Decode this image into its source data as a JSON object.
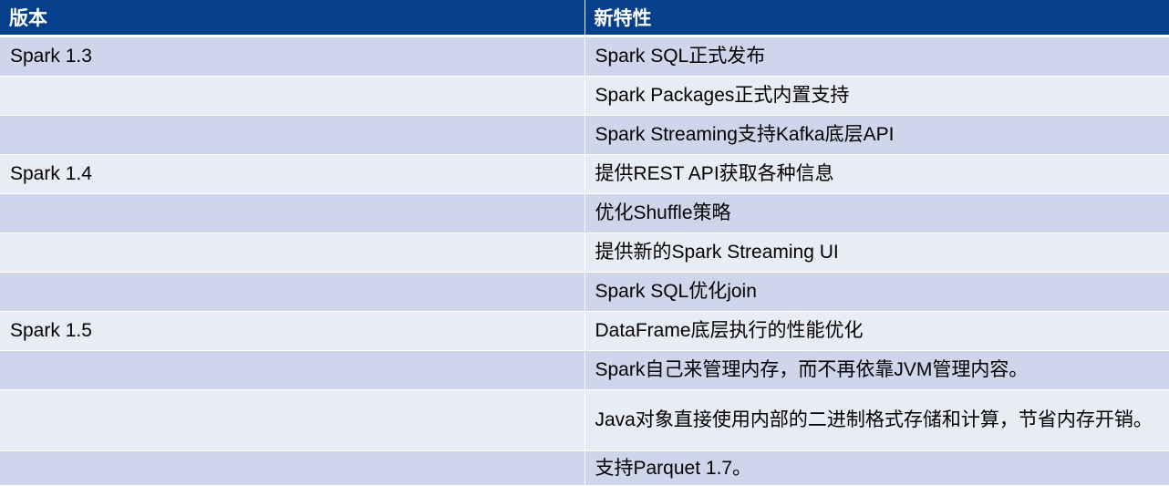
{
  "table": {
    "headers": [
      "版本",
      "新特性"
    ],
    "rows": [
      [
        "Spark 1.3",
        "Spark SQL正式发布"
      ],
      [
        "",
        "Spark Packages正式内置支持"
      ],
      [
        "",
        "Spark Streaming支持Kafka底层API"
      ],
      [
        "Spark 1.4",
        "提供REST API获取各种信息"
      ],
      [
        "",
        "优化Shuffle策略"
      ],
      [
        "",
        "提供新的Spark Streaming UI"
      ],
      [
        "",
        "Spark SQL优化join"
      ],
      [
        "Spark 1.5",
        "DataFrame底层执行的性能优化"
      ],
      [
        "",
        "Spark自己来管理内存，而不再依靠JVM管理内容。"
      ],
      [
        "",
        "Java对象直接使用内部的二进制格式存储和计算，节省内存开销。"
      ],
      [
        "",
        "支持Parquet 1.7。"
      ]
    ]
  },
  "colors": {
    "header_bg": "#063F8C",
    "row_dark": "#CFD5EA",
    "row_light": "#E9EBF5"
  }
}
